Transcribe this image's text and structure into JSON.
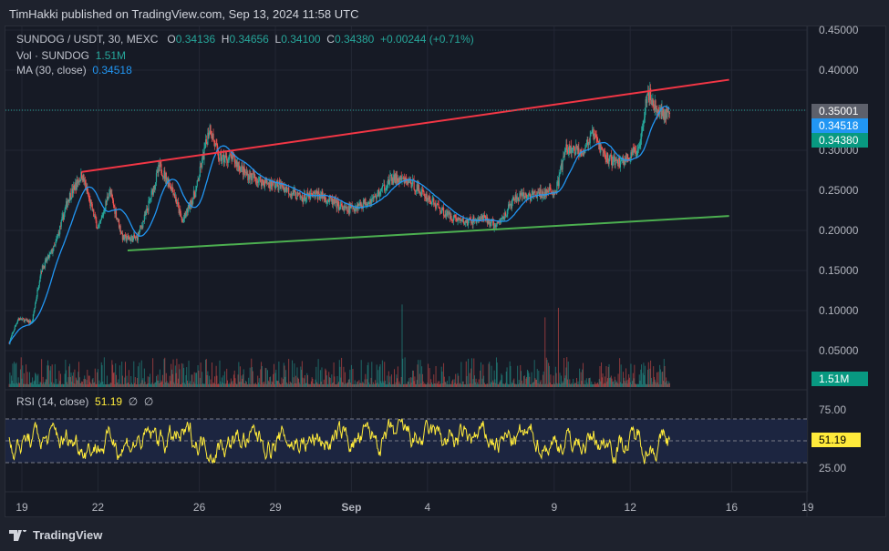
{
  "header": {
    "published": "TimHakki published on TradingView.com, Sep 13, 2024 11:58 UTC"
  },
  "legend": {
    "symbol": "SUNDOG / USDT, 30, MEXC",
    "o_label": "O",
    "o": "0.34136",
    "h_label": "H",
    "h": "0.34656",
    "l_label": "L",
    "l": "0.34100",
    "c_label": "C",
    "c": "0.34380",
    "change": "+0.00244 (+0.71%)",
    "vol_label": "Vol · SUNDOG",
    "vol": "1.51M",
    "ma_label": "MA (30, close)",
    "ma": "0.34518",
    "rsi_label": "RSI (14, close)",
    "rsi": "51.19",
    "rsi_extra1": "∅",
    "rsi_extra2": "∅"
  },
  "tags": {
    "last_high": "0.35001",
    "ma": "0.34518",
    "close": "0.34380",
    "volume": "1.51M",
    "rsi": "51.19"
  },
  "footer": {
    "brand": "TradingView"
  },
  "colors": {
    "up": "#26a69a",
    "down": "#ef5350",
    "ma": "#2196f3",
    "rsi": "#ffeb3b",
    "resistance": "#f23645",
    "support": "#4caf50"
  },
  "chart_data": {
    "type": "candlestick",
    "title": "SUNDOG / USDT, 30, MEXC",
    "price_ticks": [
      "0.45000",
      "0.40000",
      "0.35000",
      "0.30000",
      "0.25000",
      "0.20000",
      "0.15000",
      "0.10000",
      "0.05000"
    ],
    "price_tick_values": [
      0.45,
      0.4,
      0.35,
      0.3,
      0.25,
      0.2,
      0.15,
      0.1,
      0.05
    ],
    "ylim": [
      0.0,
      0.45
    ],
    "x_ticks": [
      "19",
      "22",
      "26",
      "29",
      "Sep",
      "4",
      "9",
      "12",
      "16",
      "19"
    ],
    "x_tick_days": [
      0,
      3,
      7,
      10,
      13,
      16,
      21,
      24,
      28,
      31
    ],
    "xlim_days": [
      -0.5,
      31.3
    ],
    "price_path": [
      [
        -0.5,
        0.06
      ],
      [
        -0.15,
        0.09
      ],
      [
        0.4,
        0.085
      ],
      [
        0.75,
        0.15
      ],
      [
        1.3,
        0.18
      ],
      [
        1.83,
        0.24
      ],
      [
        2.37,
        0.27
      ],
      [
        2.73,
        0.23
      ],
      [
        3.02,
        0.2
      ],
      [
        3.45,
        0.25
      ],
      [
        3.99,
        0.19
      ],
      [
        4.53,
        0.19
      ],
      [
        4.89,
        0.22
      ],
      [
        5.43,
        0.28
      ],
      [
        5.97,
        0.25
      ],
      [
        6.33,
        0.21
      ],
      [
        6.87,
        0.25
      ],
      [
        7.41,
        0.33
      ],
      [
        7.77,
        0.29
      ],
      [
        8.31,
        0.29
      ],
      [
        8.85,
        0.27
      ],
      [
        9.57,
        0.26
      ],
      [
        10.29,
        0.255
      ],
      [
        11.01,
        0.24
      ],
      [
        11.73,
        0.245
      ],
      [
        12.81,
        0.225
      ],
      [
        13.89,
        0.24
      ],
      [
        14.6,
        0.265
      ],
      [
        15.32,
        0.26
      ],
      [
        16.04,
        0.24
      ],
      [
        16.76,
        0.22
      ],
      [
        17.48,
        0.21
      ],
      [
        18.2,
        0.215
      ],
      [
        18.74,
        0.205
      ],
      [
        19.46,
        0.24
      ],
      [
        20.36,
        0.245
      ],
      [
        21.08,
        0.25
      ],
      [
        21.44,
        0.3
      ],
      [
        22.16,
        0.3
      ],
      [
        22.52,
        0.32
      ],
      [
        23.06,
        0.29
      ],
      [
        23.6,
        0.285
      ],
      [
        24.32,
        0.3
      ],
      [
        24.68,
        0.375
      ],
      [
        25.04,
        0.35
      ],
      [
        25.58,
        0.3438
      ]
    ],
    "trendlines": [
      {
        "name": "resistance",
        "from": [
          2.37,
          0.273
        ],
        "to": [
          27.9,
          0.388
        ]
      },
      {
        "name": "support",
        "from": [
          4.17,
          0.175
        ],
        "to": [
          27.9,
          0.218
        ]
      }
    ],
    "rsi": {
      "period": 14,
      "last": 51.19,
      "levels": [
        75,
        50,
        25
      ],
      "ylim": [
        0,
        100
      ],
      "tick_labels": [
        "75.00",
        "25.00"
      ]
    },
    "volume": {
      "last": "1.51M"
    }
  }
}
